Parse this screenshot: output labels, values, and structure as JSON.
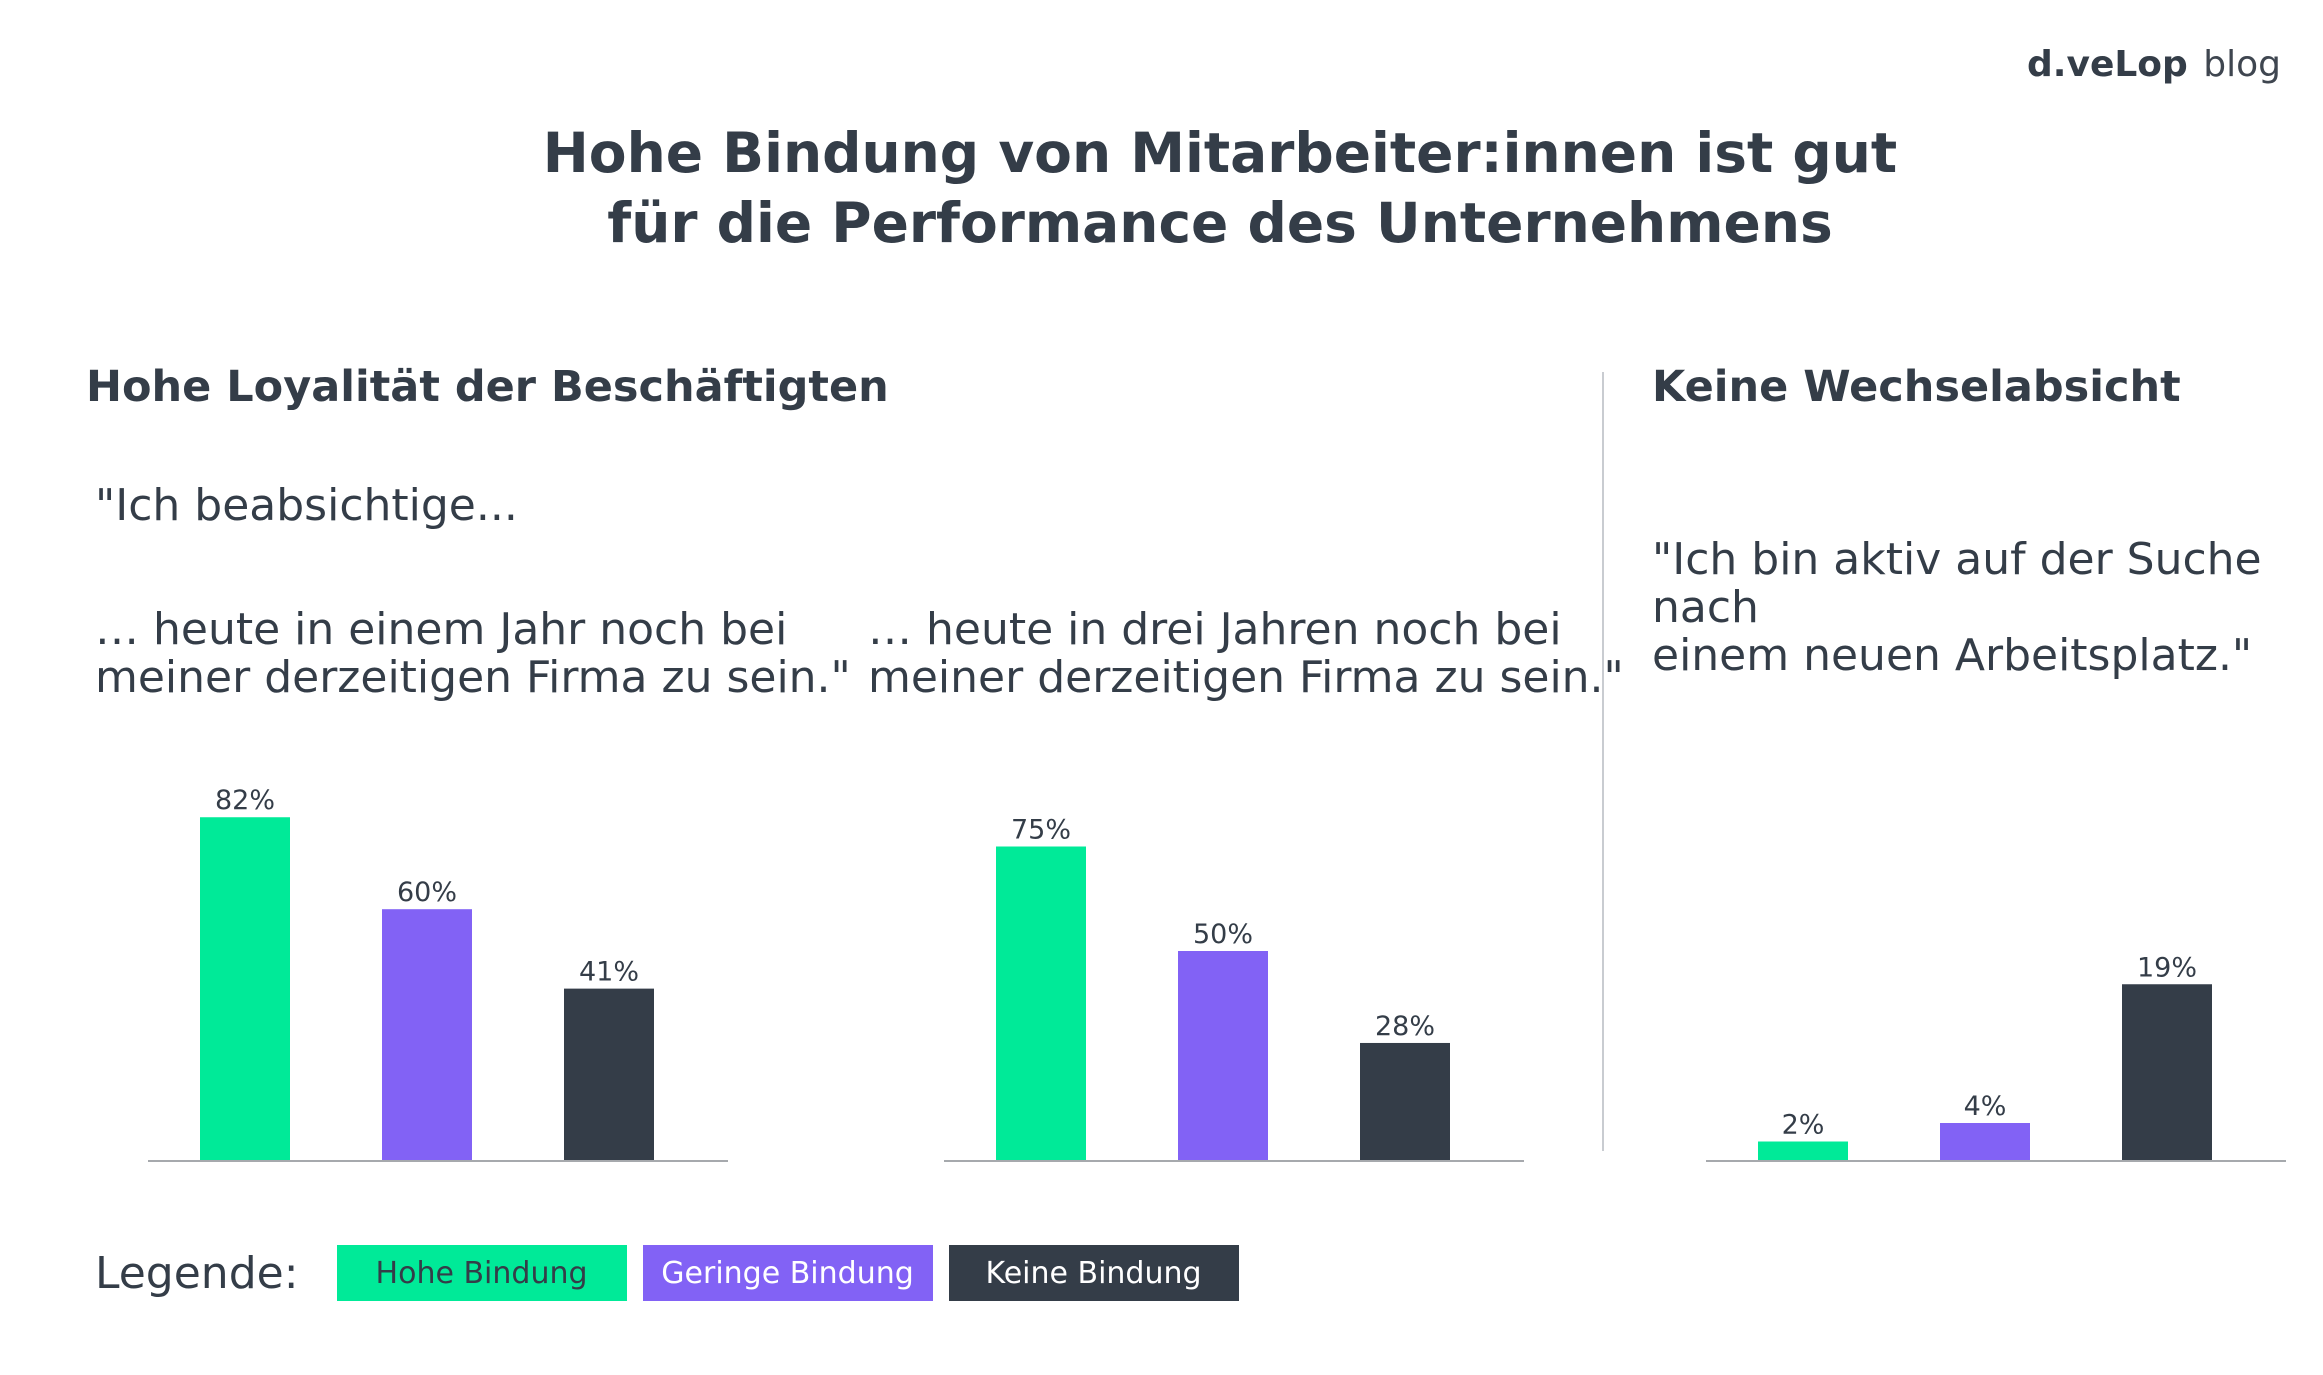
{
  "logo": {
    "brand": "d.veLop",
    "suffix": "blog"
  },
  "title": {
    "line1": "Hohe Bindung von Mitarbeiter:innen ist gut",
    "line2": "für die Performance des Unternehmens"
  },
  "sections": {
    "loyalty": {
      "heading": "Hohe Loyalität der Beschäftigten",
      "intro": "\"Ich beabsichtige...",
      "left_q_line1": "… heute in einem Jahr noch bei",
      "left_q_line2": "meiner derzeitigen Firma zu sein.\"",
      "right_q_line1": "… heute in drei Jahren noch bei",
      "right_q_line2": "meiner derzeitigen Firma zu sein.\""
    },
    "switch": {
      "heading": "Keine Wechselabsicht",
      "q_line1": "\"Ich bin aktiv auf der Suche nach",
      "q_line2": "einem neuen Arbeitsplatz.\""
    }
  },
  "colors": {
    "hohe": "#00ea98",
    "geringe": "#8262f5",
    "keine": "#343d48",
    "text": "#343d48",
    "axis": "#a6a9ad"
  },
  "legend": {
    "label": "Legende:",
    "items": [
      {
        "label": "Hohe Bindung",
        "color": "#00ea98",
        "text_color": "#343d48"
      },
      {
        "label": "Geringe Bindung",
        "color": "#8262f5",
        "text_color": "#ffffff"
      },
      {
        "label": "Keine Bindung",
        "color": "#343d48",
        "text_color": "#ffffff"
      }
    ]
  },
  "chart_data": [
    {
      "type": "bar",
      "categories": [
        "Hohe Bindung",
        "Geringe Bindung",
        "Keine Bindung"
      ],
      "values": [
        82,
        60,
        41
      ],
      "labels": [
        "82%",
        "60%",
        "41%"
      ],
      "ylim": [
        0,
        100
      ]
    },
    {
      "type": "bar",
      "categories": [
        "Hohe Bindung",
        "Geringe Bindung",
        "Keine Bindung"
      ],
      "values": [
        75,
        50,
        28
      ],
      "labels": [
        "75%",
        "50%",
        "28%"
      ],
      "ylim": [
        0,
        100
      ]
    },
    {
      "type": "bar",
      "categories": [
        "Hohe Bindung",
        "Geringe Bindung",
        "Keine Bindung"
      ],
      "values": [
        2,
        4,
        19
      ],
      "labels": [
        "2%",
        "4%",
        "19%"
      ],
      "ylim": [
        0,
        40
      ]
    }
  ]
}
